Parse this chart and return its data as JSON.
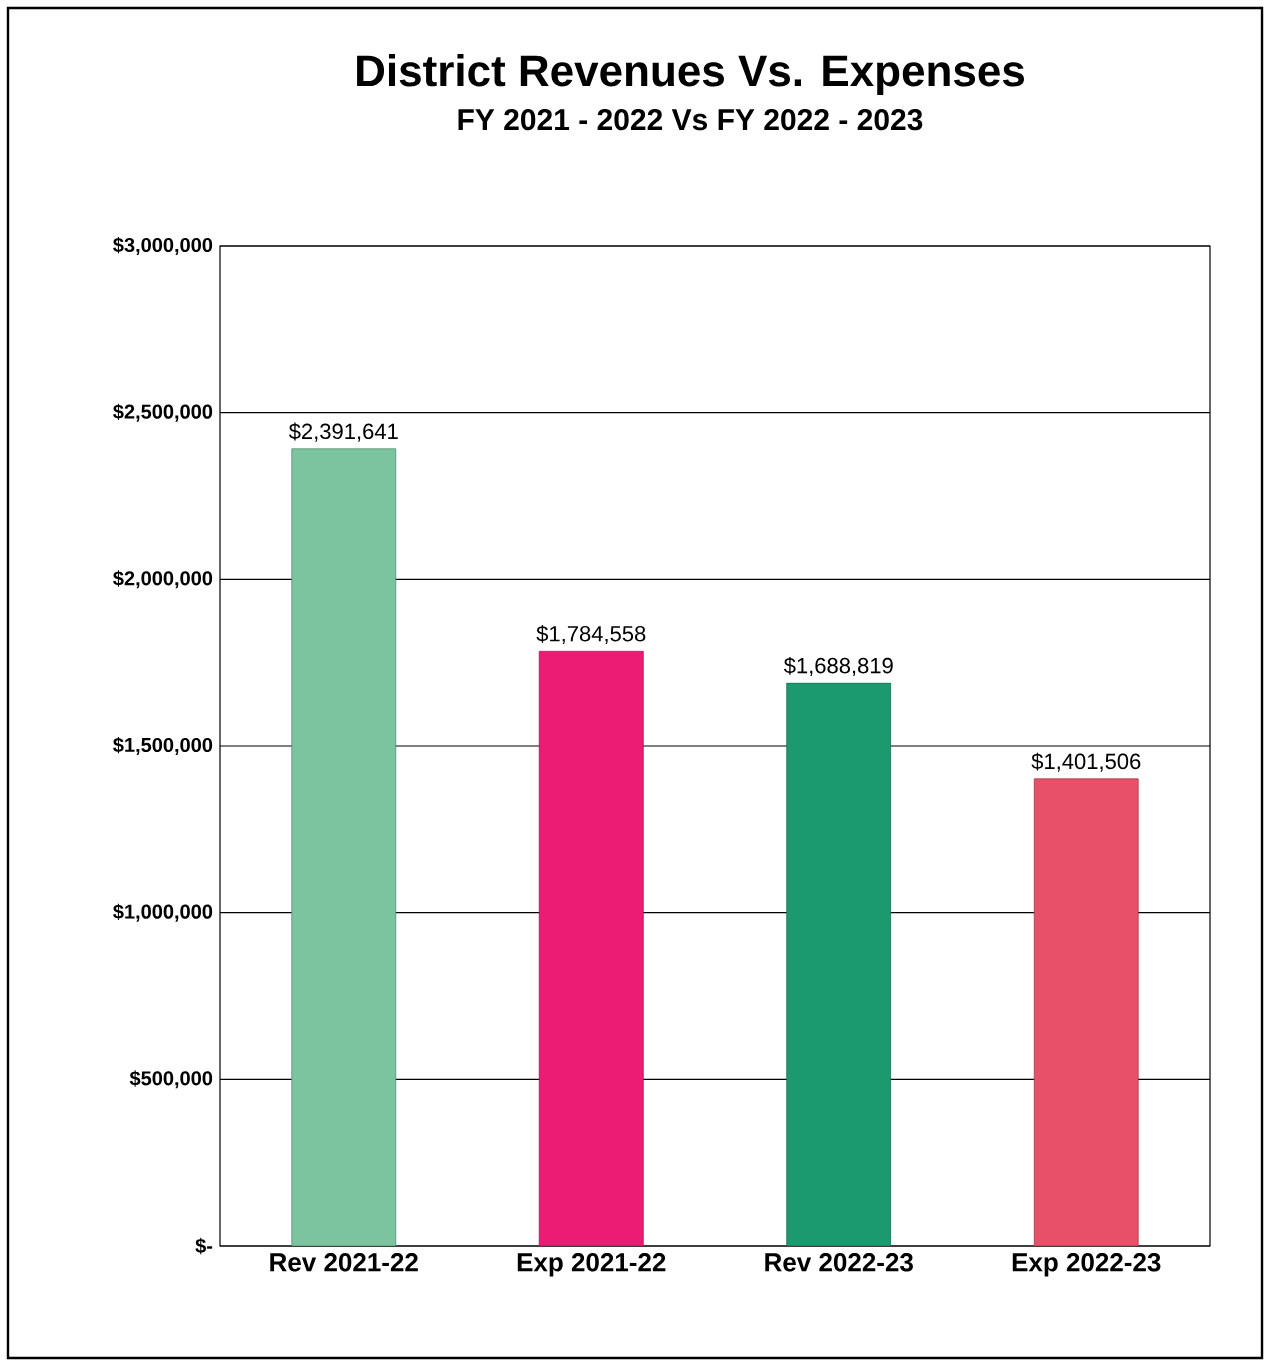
{
  "chart_data": {
    "type": "bar",
    "title": "District Revenues Vs. Expenses",
    "subtitle": "FY 2021 - 2022 Vs FY 2022 - 2023",
    "categories": [
      "Rev 2021-22",
      "Exp 2021-22",
      "Rev 2022-23",
      "Exp 2022-23"
    ],
    "values": [
      2391641,
      1784558,
      1688819,
      1401506
    ],
    "colors": [
      "#7cc49f",
      "#ec1c74",
      "#1a9a6e",
      "#e8506a"
    ],
    "value_labels": [
      "$2,391,641",
      "$1,784,558",
      "$1,688,819",
      "$1,401,506"
    ],
    "ylim": [
      0,
      3000000
    ],
    "yticks": [
      {
        "value": 0,
        "label": "$-"
      },
      {
        "value": 500000,
        "label": "$500,000"
      },
      {
        "value": 1000000,
        "label": "$1,000,000"
      },
      {
        "value": 1500000,
        "label": "$1,500,000"
      },
      {
        "value": 2000000,
        "label": "$2,000,000"
      },
      {
        "value": 2500000,
        "label": "$2,500,000"
      },
      {
        "value": 3000000,
        "label": "$3,000,000"
      }
    ],
    "grid": "y"
  }
}
